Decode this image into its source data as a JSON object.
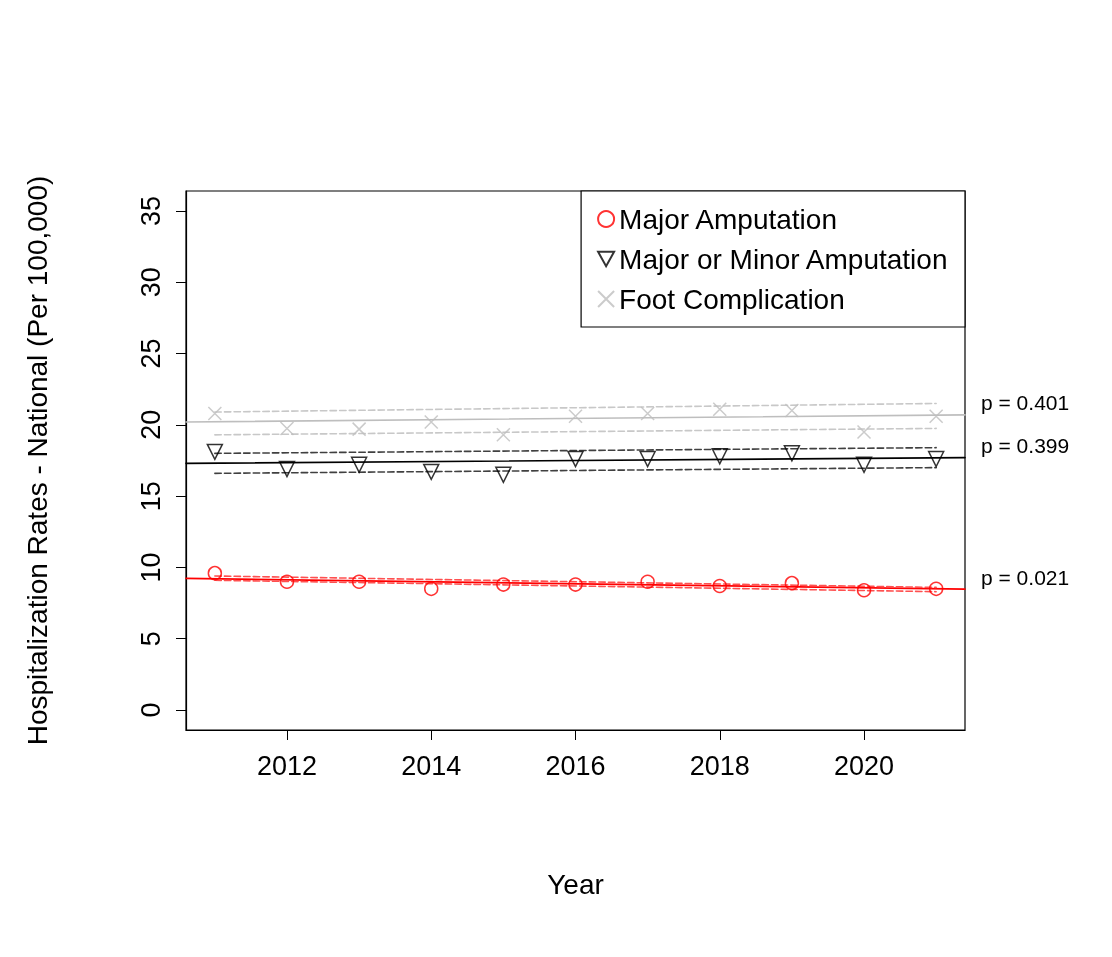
{
  "chart_data": {
    "type": "scatter",
    "xlabel": "Year",
    "ylabel": "Hospitalization Rates - National (Per 100,000)",
    "x": [
      2011,
      2012,
      2013,
      2014,
      2015,
      2016,
      2017,
      2018,
      2019,
      2020,
      2021
    ],
    "series": [
      {
        "name": "Major Amputation",
        "color": "#ff0000",
        "marker": "circle",
        "values": [
          9.6,
          9.0,
          9.0,
          8.5,
          8.8,
          8.8,
          9.0,
          8.7,
          8.9,
          8.4,
          8.5
        ]
      },
      {
        "name": "Major or Minor Amputation",
        "color": "#000000",
        "marker": "triangle",
        "values": [
          18.1,
          16.9,
          17.2,
          16.7,
          16.5,
          17.6,
          17.6,
          17.8,
          18.0,
          17.2,
          17.6
        ]
      },
      {
        "name": "Foot Complication",
        "color": "#bebebe",
        "marker": "cross",
        "values": [
          20.8,
          19.75,
          19.7,
          20.2,
          19.3,
          20.6,
          20.8,
          21.1,
          21.0,
          19.5,
          20.6
        ]
      },
      {
        "type": "line",
        "name": "p = 0.021",
        "color": "#ff0000",
        "line_style": "solid",
        "x": [
          2010.6,
          2021.4
        ],
        "values": [
          9.23,
          8.48
        ]
      },
      {
        "type": "line",
        "name": "p = 0.399",
        "color": "#000000",
        "line_style": "solid",
        "x": [
          2010.6,
          2021.4
        ],
        "values": [
          17.3,
          17.7
        ]
      },
      {
        "type": "line",
        "name": "p = 0.401",
        "color": "#bebebe",
        "line_style": "solid",
        "x": [
          2010.6,
          2021.4
        ],
        "values": [
          20.2,
          20.7
        ]
      },
      {
        "type": "line",
        "color": "#ff5050",
        "line_style": "dashed",
        "x": [
          2011,
          2021
        ],
        "values": [
          9.4,
          8.6
        ]
      },
      {
        "type": "line",
        "color": "#ff5050",
        "line_style": "dashed",
        "x": [
          2011,
          2021
        ],
        "values": [
          9.1,
          8.3
        ]
      },
      {
        "type": "line",
        "color": "#404040",
        "line_style": "dashed",
        "x": [
          2011,
          2021
        ],
        "values": [
          18.0,
          18.4
        ]
      },
      {
        "type": "line",
        "color": "#404040",
        "line_style": "dashed",
        "x": [
          2011,
          2021
        ],
        "values": [
          16.6,
          17.0
        ]
      },
      {
        "type": "line",
        "color": "#c8c8c8",
        "line_style": "dashed",
        "x": [
          2011,
          2021
        ],
        "values": [
          20.9,
          21.5
        ]
      },
      {
        "type": "line",
        "color": "#c8c8c8",
        "line_style": "dashed",
        "x": [
          2011,
          2021
        ],
        "values": [
          19.3,
          19.75
        ]
      }
    ],
    "xlim": [
      2010.6,
      2021.4
    ],
    "xticks": [
      2012,
      2014,
      2016,
      2018,
      2020
    ],
    "ylim": [
      -1.4,
      36.4
    ],
    "yticks": [
      0,
      5,
      10,
      15,
      20,
      25,
      30,
      35
    ],
    "grid": false,
    "legend": "top right"
  }
}
